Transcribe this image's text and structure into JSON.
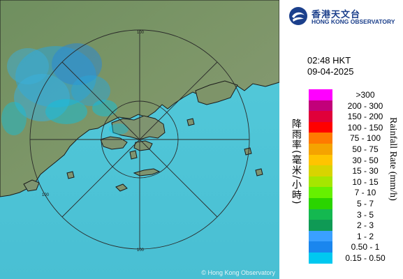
{
  "org": {
    "name_zh": "香港天文台",
    "name_en": "HONG KONG OBSERVATORY"
  },
  "timestamp": {
    "time": "02:48 HKT",
    "date": "09-04-2025"
  },
  "map": {
    "copyright": "© Hong Kong Observatory",
    "range_ring_label": "100",
    "colors": {
      "sea": "#4fc6d8",
      "land": "#6e8c5e",
      "coast": "#1a1a1a",
      "rings": "#2a2a2a"
    }
  },
  "legend": {
    "title_zh": "降雨率(毫米/小時)",
    "title_en": "Rainfall Rate (mm/h)",
    "items": [
      {
        "label": ">300",
        "color": "#ff00ff"
      },
      {
        "label": "200 - 300",
        "color": "#c2007a"
      },
      {
        "label": "150 - 200",
        "color": "#e0003a"
      },
      {
        "label": "100 - 150",
        "color": "#ff0000"
      },
      {
        "label": "75 - 100",
        "color": "#ff7a00"
      },
      {
        "label": "50 - 75",
        "color": "#f5a300"
      },
      {
        "label": "30 - 50",
        "color": "#ffc400"
      },
      {
        "label": "15 - 30",
        "color": "#d8d400"
      },
      {
        "label": "10 - 15",
        "color": "#a6e600"
      },
      {
        "label": "7 - 10",
        "color": "#66f000"
      },
      {
        "label": "5 - 7",
        "color": "#2ad400"
      },
      {
        "label": "3 - 5",
        "color": "#14b850"
      },
      {
        "label": "2 - 3",
        "color": "#0f9a55"
      },
      {
        "label": "1 - 2",
        "color": "#3aa0ff"
      },
      {
        "label": "0.50 - 1",
        "color": "#1a86ee"
      },
      {
        "label": "0.15 - 0.50",
        "color": "#00c8f0"
      }
    ]
  }
}
